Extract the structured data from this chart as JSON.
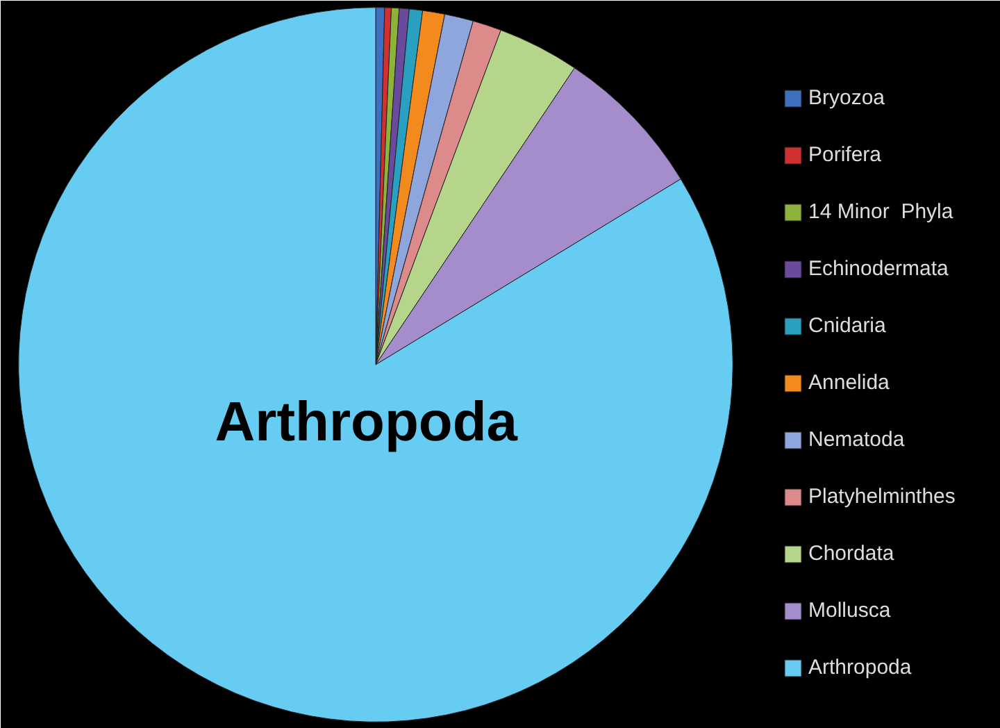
{
  "chart_data": {
    "type": "pie",
    "categories": [
      "Bryozoa",
      "Porifera",
      "14 Minor  Phyla",
      "Echinodermata",
      "Cnidaria",
      "Annelida",
      "Nematoda",
      "Platyhelminthes",
      "Chordata",
      "Mollusca",
      "Arthropoda"
    ],
    "values": [
      0.4,
      0.3,
      0.35,
      0.45,
      0.6,
      1.0,
      1.3,
      1.3,
      3.7,
      6.9,
      83.7
    ],
    "colors": [
      "#3f6fbf",
      "#d03030",
      "#8db33a",
      "#6a4a9c",
      "#2aa0c0",
      "#f28a1e",
      "#8ea6dc",
      "#dc8a8a",
      "#b5d68a",
      "#a58ccb",
      "#66ccf2"
    ],
    "annotations": [
      "Arthropoda"
    ],
    "legend": "right"
  }
}
